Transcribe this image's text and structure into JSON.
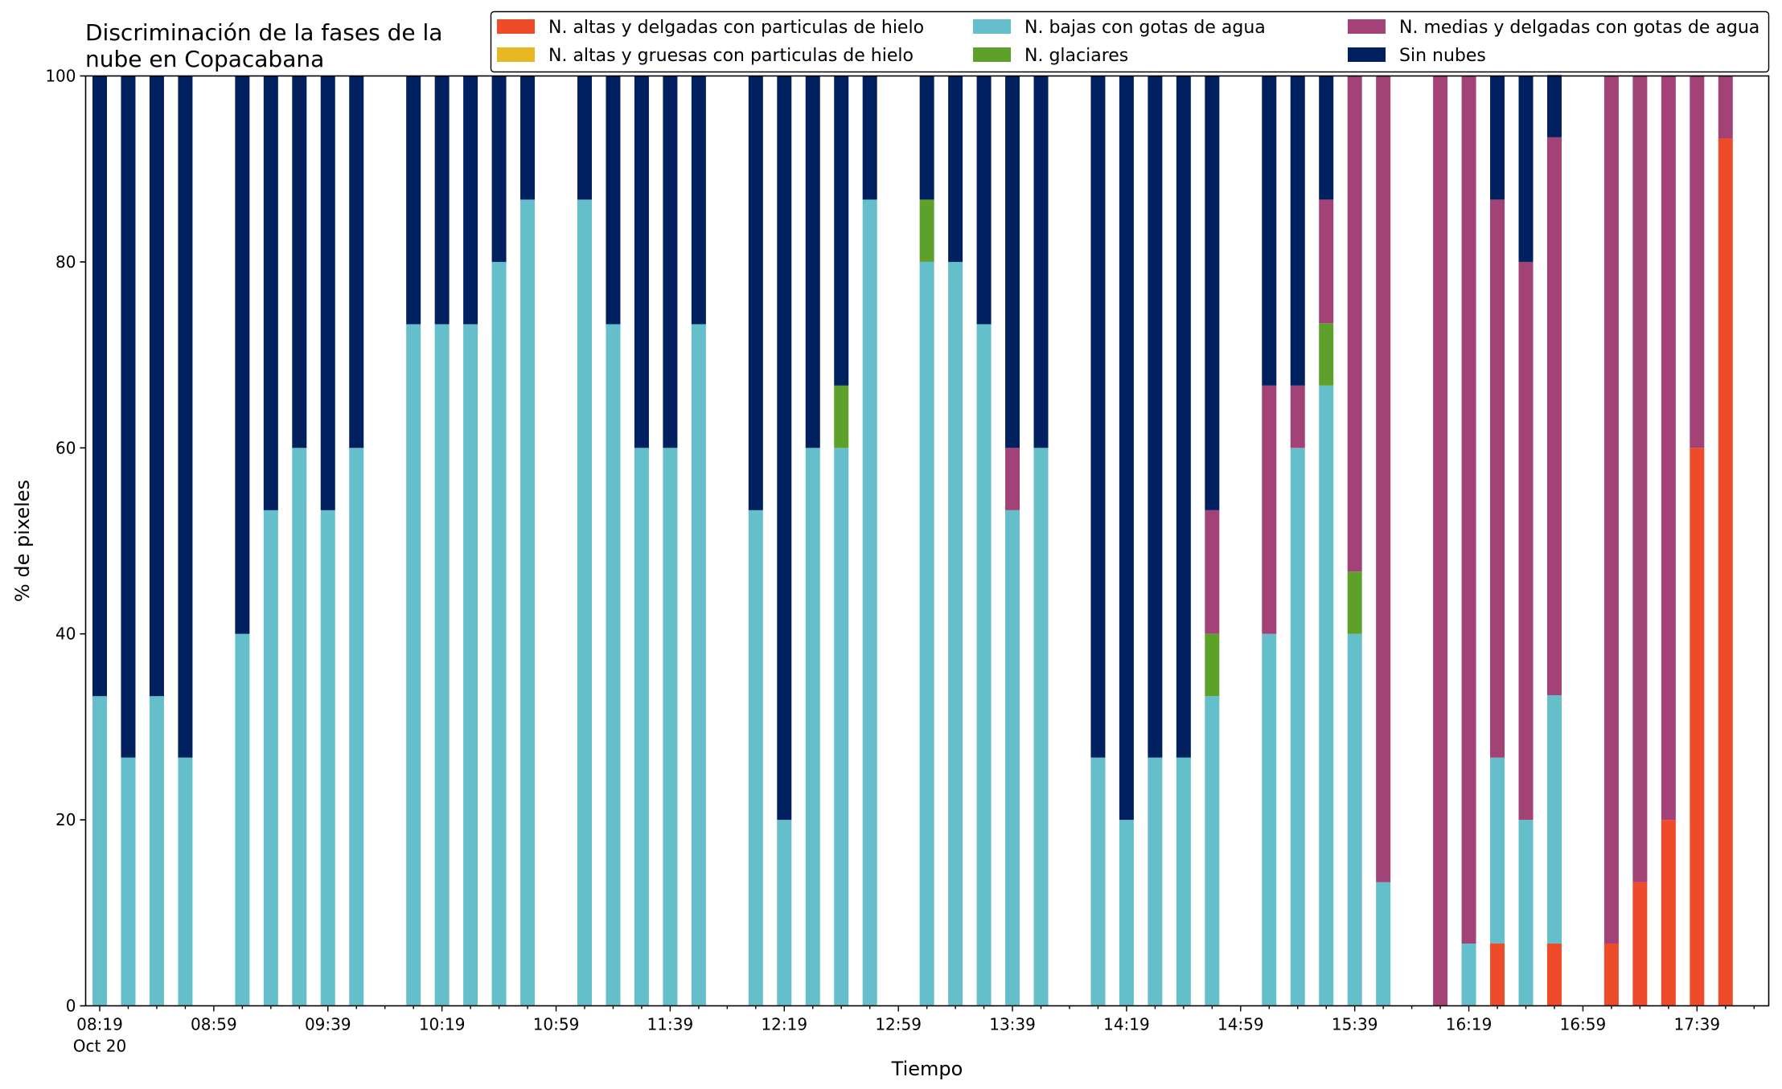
{
  "chart_data": {
    "type": "bar",
    "stacked": true,
    "title_lines": [
      "Discriminación de la fases de la",
      "nube en Copacabana"
    ],
    "xlabel": "Tiempo",
    "ylabel": "% de pixeles",
    "ylim": [
      0,
      100
    ],
    "yticks": [
      0,
      20,
      40,
      60,
      80,
      100
    ],
    "grid": false,
    "legend_position": "top-right",
    "x_axis": {
      "start": "08:19",
      "step_minutes": 10,
      "n_slots": 59,
      "date_label": "Oct 20",
      "tick_labels": [
        "08:19",
        "08:59",
        "09:39",
        "10:19",
        "10:59",
        "11:39",
        "12:19",
        "12:59",
        "13:39",
        "14:19",
        "14:59",
        "15:39",
        "16:19",
        "16:59",
        "17:39"
      ]
    },
    "series": [
      {
        "name": "N. altas y delgadas con particulas de hielo",
        "color": "#ee4b2b"
      },
      {
        "name": "N. altas y gruesas con particulas de hielo",
        "color": "#e6b822"
      },
      {
        "name": "N. bajas con gotas de agua",
        "color": "#65bfca"
      },
      {
        "name": "N. glaciares",
        "color": "#5da12a"
      },
      {
        "name": "N. medias y delgadas con gotas de agua",
        "color": "#a24277"
      },
      {
        "name": "Sin nubes",
        "color": "#01205f"
      }
    ],
    "bars": [
      {
        "time": "08:19",
        "values": [
          0,
          0,
          33.3,
          0,
          0,
          66.7
        ]
      },
      {
        "time": "08:29",
        "values": [
          0,
          0,
          26.7,
          0,
          0,
          73.3
        ]
      },
      {
        "time": "08:39",
        "values": [
          0,
          0,
          33.3,
          0,
          0,
          66.7
        ]
      },
      {
        "time": "08:49",
        "values": [
          0,
          0,
          26.7,
          0,
          0,
          73.3
        ]
      },
      {
        "time": "09:09",
        "values": [
          0,
          0,
          40,
          0,
          0,
          60
        ]
      },
      {
        "time": "09:19",
        "values": [
          0,
          0,
          53.3,
          0,
          0,
          46.7
        ]
      },
      {
        "time": "09:29",
        "values": [
          0,
          0,
          60,
          0,
          0,
          40
        ]
      },
      {
        "time": "09:39",
        "values": [
          0,
          0,
          53.3,
          0,
          0,
          46.7
        ]
      },
      {
        "time": "09:49",
        "values": [
          0,
          0,
          60,
          0,
          0,
          40
        ]
      },
      {
        "time": "10:09",
        "values": [
          0,
          0,
          73.3,
          0,
          0,
          26.7
        ]
      },
      {
        "time": "10:19",
        "values": [
          0,
          0,
          73.3,
          0,
          0,
          26.7
        ]
      },
      {
        "time": "10:29",
        "values": [
          0,
          0,
          73.3,
          0,
          0,
          26.7
        ]
      },
      {
        "time": "10:39",
        "values": [
          0,
          0,
          80,
          0,
          0,
          20
        ]
      },
      {
        "time": "10:49",
        "values": [
          0,
          0,
          86.7,
          0,
          0,
          13.3
        ]
      },
      {
        "time": "11:09",
        "values": [
          0,
          0,
          86.7,
          0,
          0,
          13.3
        ]
      },
      {
        "time": "11:19",
        "values": [
          0,
          0,
          73.3,
          0,
          0,
          26.7
        ]
      },
      {
        "time": "11:29",
        "values": [
          0,
          0,
          60,
          0,
          0,
          40
        ]
      },
      {
        "time": "11:39",
        "values": [
          0,
          0,
          60,
          0,
          0,
          40
        ]
      },
      {
        "time": "11:49",
        "values": [
          0,
          0,
          73.3,
          0,
          0,
          26.7
        ]
      },
      {
        "time": "12:09",
        "values": [
          0,
          0,
          53.3,
          0,
          0,
          46.7
        ]
      },
      {
        "time": "12:19",
        "values": [
          0,
          0,
          20,
          0,
          0,
          80
        ]
      },
      {
        "time": "12:29",
        "values": [
          0,
          0,
          60,
          0,
          0,
          40
        ]
      },
      {
        "time": "12:39",
        "values": [
          0,
          0,
          60,
          6.7,
          0,
          33.3
        ]
      },
      {
        "time": "12:49",
        "values": [
          0,
          0,
          86.7,
          0,
          0,
          13.3
        ]
      },
      {
        "time": "13:09",
        "values": [
          0,
          0,
          80,
          6.7,
          0,
          13.3
        ]
      },
      {
        "time": "13:19",
        "values": [
          0,
          0,
          80,
          0,
          0,
          20
        ]
      },
      {
        "time": "13:29",
        "values": [
          0,
          0,
          73.3,
          0,
          0,
          26.7
        ]
      },
      {
        "time": "13:39",
        "values": [
          0,
          0,
          53.3,
          0,
          6.7,
          40
        ]
      },
      {
        "time": "13:49",
        "values": [
          0,
          0,
          60,
          0,
          0,
          40
        ]
      },
      {
        "time": "14:09",
        "values": [
          0,
          0,
          26.7,
          0,
          0,
          73.3
        ]
      },
      {
        "time": "14:19",
        "values": [
          0,
          0,
          20,
          0,
          0,
          80
        ]
      },
      {
        "time": "14:29",
        "values": [
          0,
          0,
          26.7,
          0,
          0,
          73.3
        ]
      },
      {
        "time": "14:39",
        "values": [
          0,
          0,
          26.7,
          0,
          0,
          73.3
        ]
      },
      {
        "time": "14:49",
        "values": [
          0,
          0,
          33.3,
          6.7,
          13.3,
          46.7
        ]
      },
      {
        "time": "15:09",
        "values": [
          0,
          0,
          40,
          0,
          26.7,
          33.3
        ]
      },
      {
        "time": "15:19",
        "values": [
          0,
          0,
          60,
          0,
          6.7,
          33.3
        ]
      },
      {
        "time": "15:29",
        "values": [
          0,
          0,
          66.7,
          6.7,
          13.3,
          13.3
        ]
      },
      {
        "time": "15:39",
        "values": [
          0,
          0,
          40,
          6.7,
          53.3,
          0
        ]
      },
      {
        "time": "15:49",
        "values": [
          0,
          0,
          13.3,
          0,
          86.7,
          0
        ]
      },
      {
        "time": "16:09",
        "values": [
          0,
          0,
          0,
          0,
          100,
          0
        ]
      },
      {
        "time": "16:19",
        "values": [
          0,
          0,
          6.7,
          0,
          93.3,
          0
        ]
      },
      {
        "time": "16:29",
        "values": [
          6.7,
          0,
          20,
          0,
          60,
          13.3
        ]
      },
      {
        "time": "16:39",
        "values": [
          0,
          0,
          20,
          0,
          60,
          20
        ]
      },
      {
        "time": "16:49",
        "values": [
          6.7,
          0,
          26.7,
          0,
          60,
          6.7
        ]
      },
      {
        "time": "17:09",
        "values": [
          6.7,
          0,
          0,
          0,
          93.3,
          0
        ]
      },
      {
        "time": "17:19",
        "values": [
          13.3,
          0,
          0,
          0,
          86.7,
          0
        ]
      },
      {
        "time": "17:29",
        "values": [
          20,
          0,
          0,
          0,
          80,
          0
        ]
      },
      {
        "time": "17:39",
        "values": [
          60,
          0,
          0,
          0,
          40,
          0
        ]
      },
      {
        "time": "17:49",
        "values": [
          93.3,
          0,
          0,
          0,
          6.7,
          0
        ]
      }
    ]
  }
}
